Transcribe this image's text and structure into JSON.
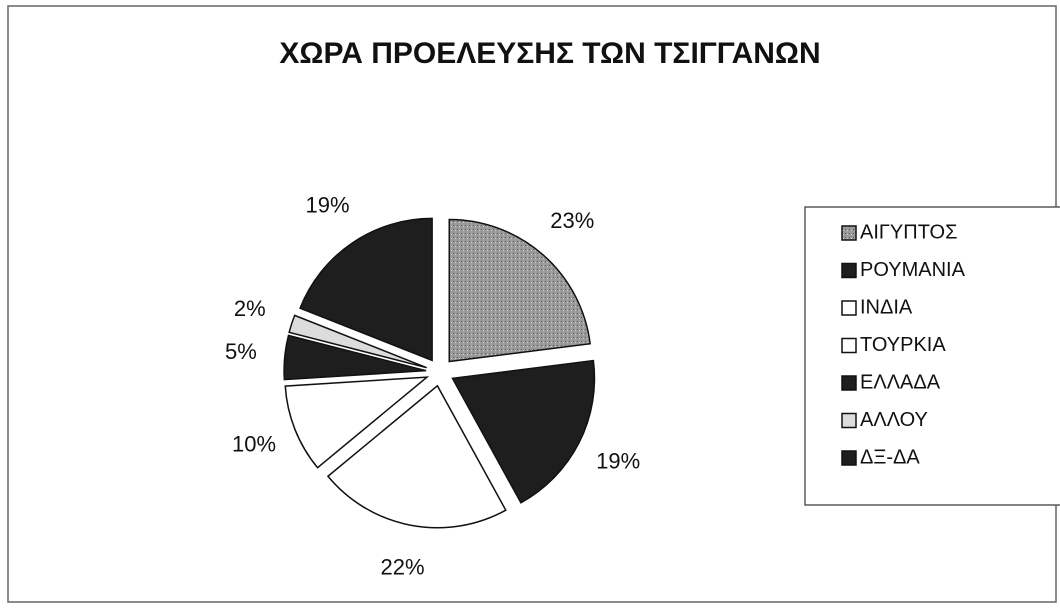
{
  "chart_data": {
    "type": "pie",
    "title": "ΧΩΡΑ ΠΡΟΕΛΕΥΣΗΣ ΤΩΝ ΤΣΙΓΓΑΝΩΝ",
    "categories": [
      "ΑΙΓΥΠΤΟΣ",
      "ΡΟΥΜΑΝΙΑ",
      "ΙΝΔΙΑ",
      "ΤΟΥΡΚΙΑ",
      "ΕΛΛΑΔΑ",
      "ΑΛΛΟΥ",
      "ΔΞ-ΔΑ"
    ],
    "values": [
      23,
      19,
      22,
      10,
      5,
      2,
      19
    ],
    "value_labels": [
      "23%",
      "19%",
      "22%",
      "10%",
      "5%",
      "2%",
      "19%"
    ],
    "colors": [
      "#9a9a9a",
      "#1e1e1e",
      "#ffffff",
      "#ffffff",
      "#1e1e1e",
      "#dcdcdc",
      "#1e1e1e"
    ],
    "legend": "right"
  }
}
